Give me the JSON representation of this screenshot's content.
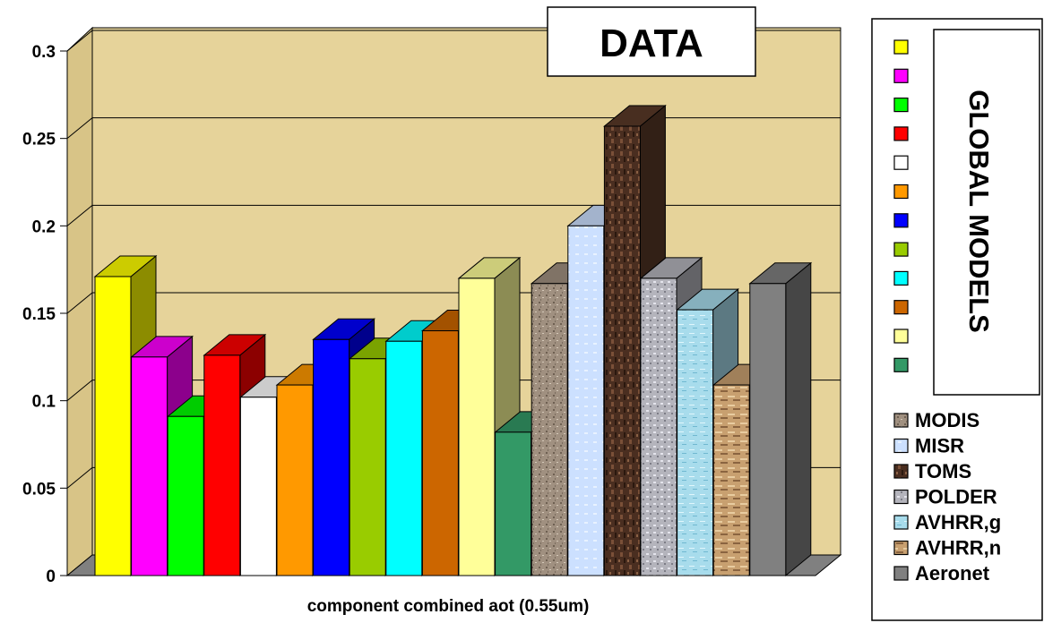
{
  "chart_data": {
    "type": "bar",
    "title": "DATA",
    "xlabel": "component combined aot (0.55um)",
    "ylabel": "",
    "ylim": [
      0,
      0.3
    ],
    "yticks": [
      "0",
      "0.05",
      "0.1",
      "0.15",
      "0.2",
      "0.25",
      "0.3"
    ],
    "grid": true,
    "legend_position": "right",
    "legend_group_title": "GLOBAL MODELS",
    "series": [
      {
        "value": 0.171,
        "color": "#ffff00"
      },
      {
        "value": 0.125,
        "color": "#ff00ff"
      },
      {
        "value": 0.091,
        "color": "#00ff00"
      },
      {
        "value": 0.126,
        "color": "#ff0000"
      },
      {
        "value": 0.102,
        "color": "#ffffff"
      },
      {
        "value": 0.109,
        "color": "#ff9900"
      },
      {
        "value": 0.135,
        "color": "#0000ff"
      },
      {
        "value": 0.124,
        "color": "#99cc00"
      },
      {
        "value": 0.134,
        "color": "#00ffff"
      },
      {
        "value": 0.14,
        "color": "#cc6600"
      },
      {
        "value": 0.17,
        "color": "#ffff99"
      },
      {
        "value": 0.082,
        "color": "#339966"
      },
      {
        "name": "MODIS",
        "value": 0.167,
        "color": "#a09080"
      },
      {
        "name": "MISR",
        "value": 0.2,
        "color": "#cce0ff"
      },
      {
        "name": "TOMS",
        "value": 0.257,
        "color": "#5a3a28"
      },
      {
        "name": "POLDER",
        "value": 0.17,
        "color": "#b4b4bc"
      },
      {
        "name": "AVHRR,g",
        "value": 0.152,
        "color": "#a8dcec"
      },
      {
        "name": "AVHRR,n",
        "value": 0.109,
        "color": "#c8a070"
      },
      {
        "name": "Aeronet",
        "value": 0.167,
        "color": "#808080"
      }
    ]
  }
}
